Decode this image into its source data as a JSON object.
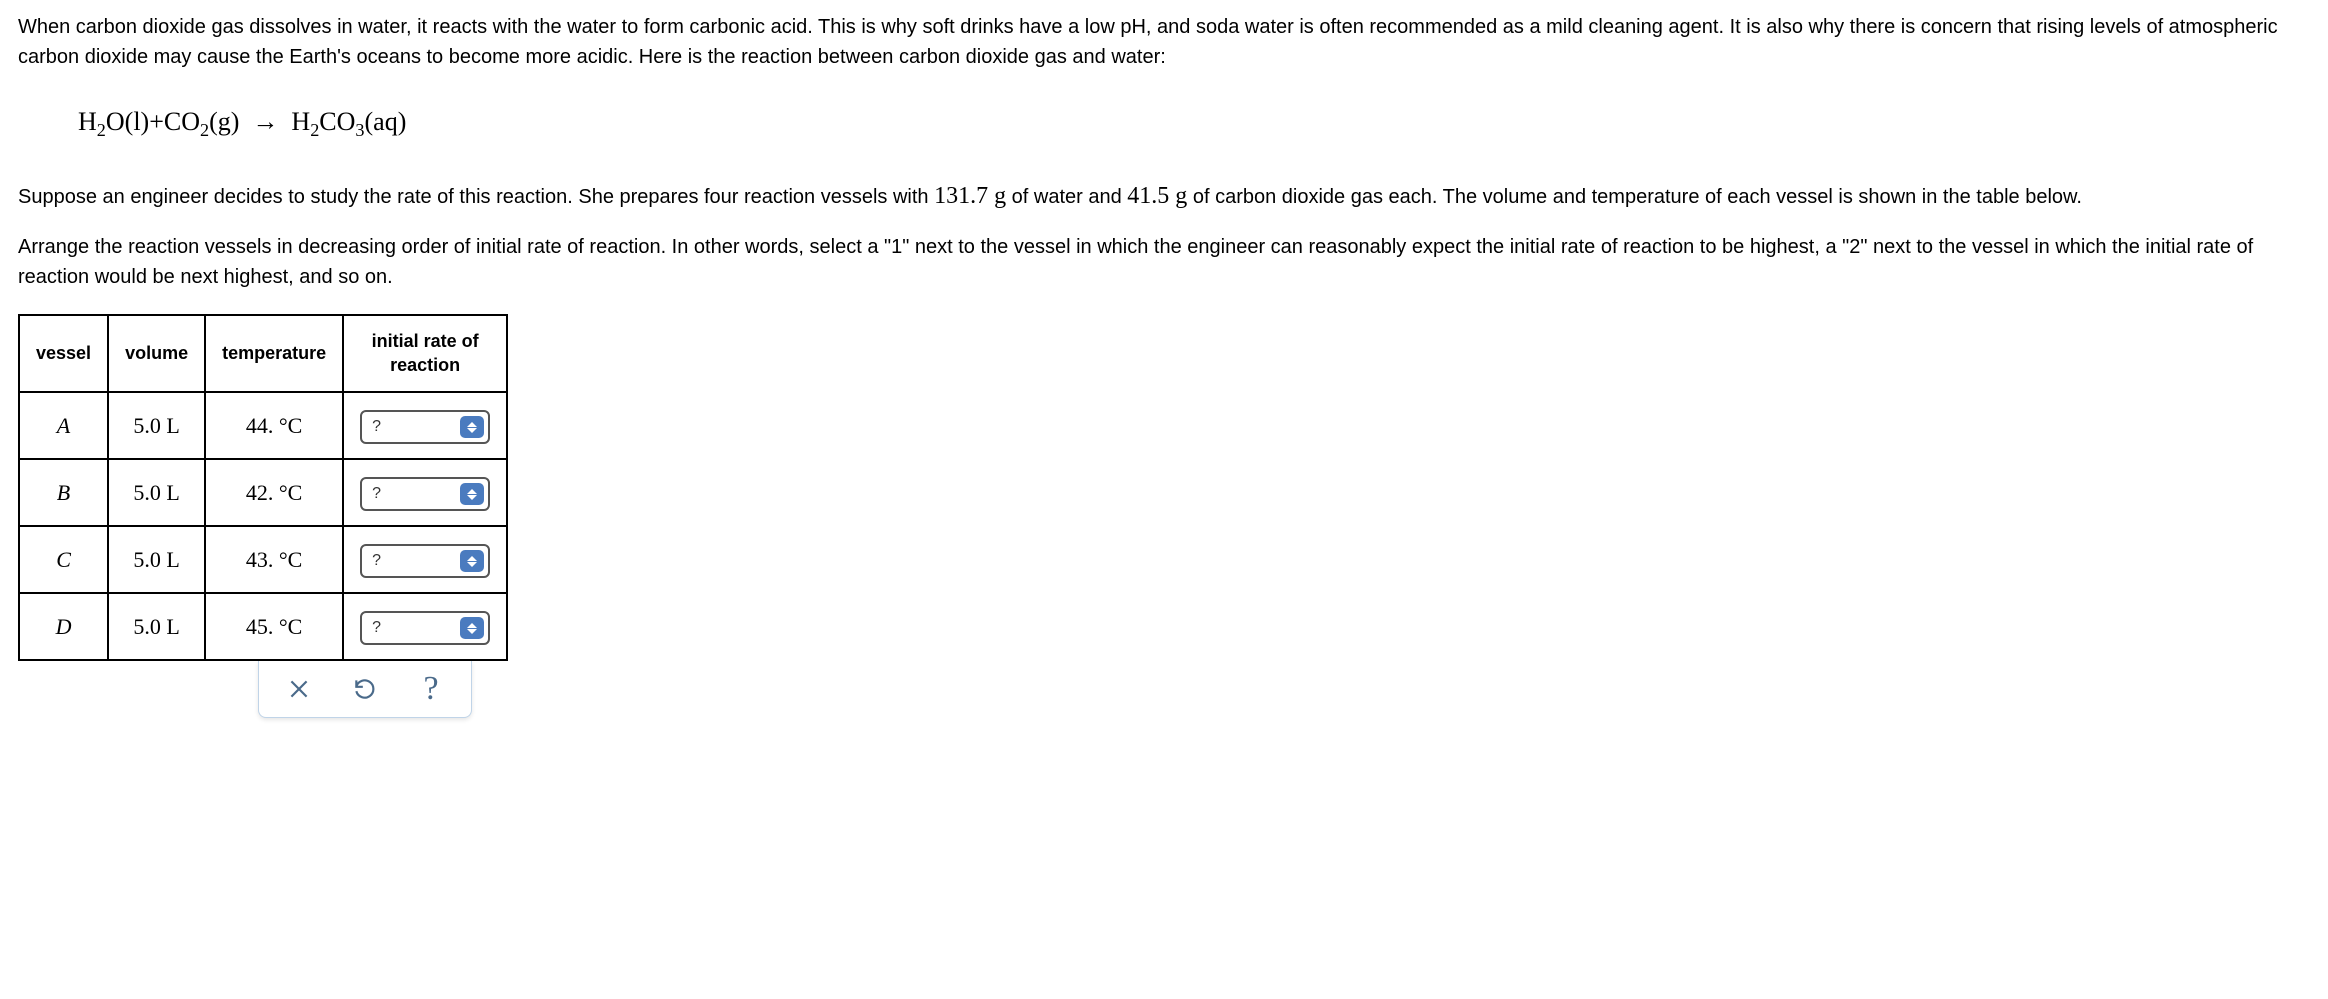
{
  "intro": {
    "p1_a": "When carbon dioxide gas dissolves in water, it reacts with the water to form carbonic acid. This is why soft drinks have a low ",
    "ph": "pH",
    "p1_b": ", and soda water is often recommended as a mild cleaning agent. It is also why there is concern that rising levels of atmospheric carbon dioxide may cause the Earth's oceans to become more acidic. Here is the reaction between carbon dioxide gas and water:"
  },
  "equation": {
    "h2o": "H",
    "h2o_sub": "2",
    "h2o_o": "O",
    "h2o_state": "(l)",
    "plus": "+",
    "co2": "CO",
    "co2_sub": "2",
    "co2_state": "(g)",
    "arrow": "→",
    "h2co3_h": "H",
    "h2co3_h_sub": "2",
    "h2co3_co": "CO",
    "h2co3_co_sub": "3",
    "h2co3_state": "(aq)"
  },
  "setup": {
    "p2_a": "Suppose an engineer decides to study the rate of this reaction. She prepares four reaction vessels with ",
    "mass_water": "131.7 g",
    "p2_b": " of water and ",
    "mass_co2": "41.5 g",
    "p2_c": " of carbon dioxide gas each. The volume and temperature of each vessel is shown in the table below."
  },
  "instr": "Arrange the reaction vessels in decreasing order of initial rate of reaction. In other words, select a \"1\" next to the vessel in which the engineer can reasonably expect the initial rate of reaction to be highest, a \"2\" next to the vessel in which the initial rate of reaction would be next highest, and so on.",
  "table": {
    "headers": {
      "vessel": "vessel",
      "volume": "volume",
      "temperature": "temperature",
      "rate": "initial rate of\nreaction"
    },
    "rows": [
      {
        "vessel": "A",
        "volume": "5.0 L",
        "temperature": "44.  °C",
        "placeholder": "?"
      },
      {
        "vessel": "B",
        "volume": "5.0 L",
        "temperature": "42.  °C",
        "placeholder": "?"
      },
      {
        "vessel": "C",
        "volume": "5.0 L",
        "temperature": "43.  °C",
        "placeholder": "?"
      },
      {
        "vessel": "D",
        "volume": "5.0 L",
        "temperature": "45.  °C",
        "placeholder": "?"
      }
    ]
  },
  "toolbar": {
    "help": "?"
  },
  "colors": {
    "border": "#000000",
    "spinner": "#4a7bbf",
    "toolbtn": "#4a6a8a"
  }
}
